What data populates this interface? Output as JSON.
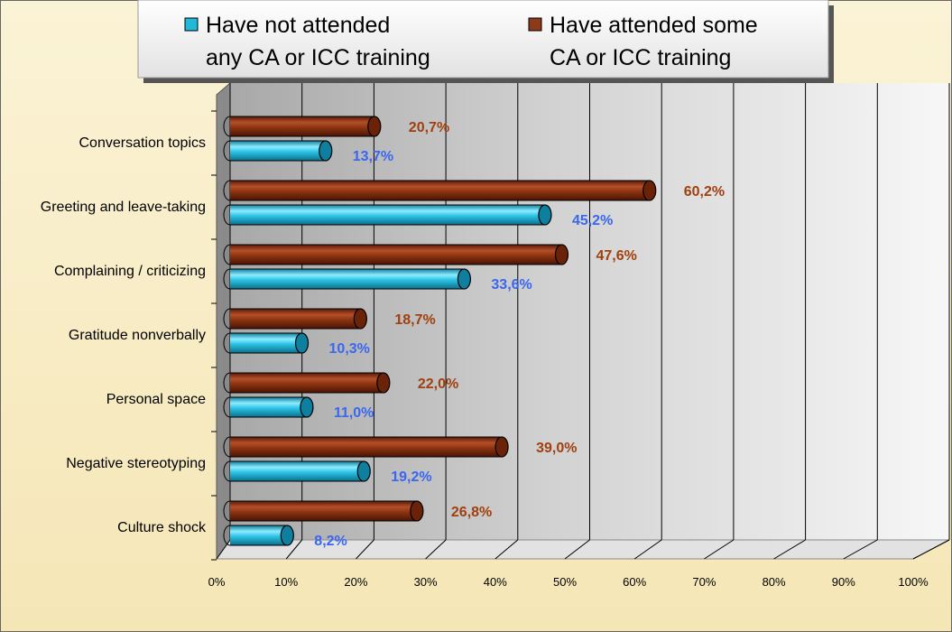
{
  "chart_data": {
    "type": "bar",
    "orientation": "horizontal",
    "style": "3d-cylinder",
    "categories": [
      "Conversation topics",
      "Greeting and leave-taking",
      "Complaining / criticizing",
      "Gratitude nonverbally",
      "Personal space",
      "Negative stereotyping",
      "Culture shock"
    ],
    "series": [
      {
        "name": "Have attended some CA or ICC training",
        "name_lines": [
          "Have attended some",
          "CA or ICC training"
        ],
        "color": "#8B3A1A",
        "values": [
          20.7,
          60.2,
          47.6,
          18.7,
          22.0,
          39.0,
          26.8
        ],
        "labels": [
          "20,7%",
          "60,2%",
          "47,6%",
          "18,7%",
          "22,0%",
          "39,0%",
          "26,8%"
        ],
        "label_color": "#A0400F"
      },
      {
        "name": "Have not attended any CA or ICC training",
        "name_lines": [
          "Have not attended",
          "any CA or ICC training"
        ],
        "color": "#22B8D8",
        "values": [
          13.7,
          45.2,
          33.6,
          10.3,
          11.0,
          19.2,
          8.2
        ],
        "labels": [
          "13,7%",
          "45,2%",
          "33,6%",
          "10,3%",
          "11,0%",
          "19,2%",
          "8,2%"
        ],
        "label_color": "#3A66F0"
      }
    ],
    "xlim": [
      0,
      100
    ],
    "xticks": [
      "0%",
      "10%",
      "20%",
      "30%",
      "40%",
      "50%",
      "60%",
      "70%",
      "80%",
      "90%",
      "100%"
    ],
    "grid": true,
    "legend_position": "top",
    "background": "#F8EDC5",
    "plot_background": "#C8C8C8"
  }
}
